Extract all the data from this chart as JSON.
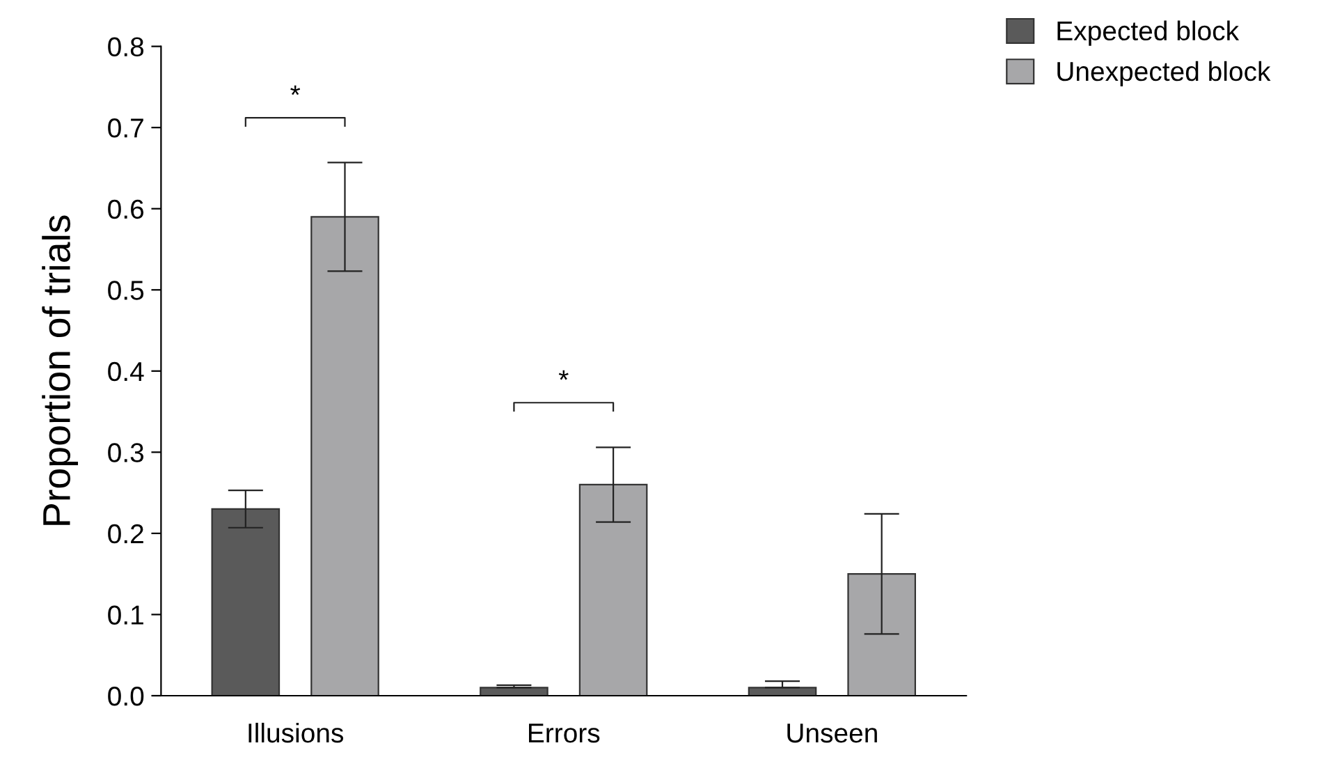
{
  "chart_data": {
    "type": "bar",
    "ylabel": "Proportion of trials",
    "categories": [
      "Illusions",
      "Errors",
      "Unseen"
    ],
    "series": [
      {
        "name": "Expected block",
        "color": "#5a5a5a",
        "values": [
          0.23,
          0.01,
          0.01
        ],
        "errors": [
          [
            0.207,
            0.253
          ],
          [
            0.01,
            0.013
          ],
          [
            0.01,
            0.018
          ]
        ]
      },
      {
        "name": "Unexpected block",
        "color": "#a7a7a9",
        "values": [
          0.59,
          0.26,
          0.15
        ],
        "errors": [
          [
            0.523,
            0.657
          ],
          [
            0.214,
            0.306
          ],
          [
            0.076,
            0.224
          ]
        ]
      }
    ],
    "ylim": [
      0,
      0.8
    ],
    "yticks": [
      {
        "value": 0,
        "label": "0.0"
      },
      {
        "value": 0.1,
        "label": "0.1"
      },
      {
        "value": 0.2,
        "label": "0.2"
      },
      {
        "value": 0.3,
        "label": "0.3"
      },
      {
        "value": 0.4,
        "label": "0.4"
      },
      {
        "value": 0.5,
        "label": "0.5"
      },
      {
        "value": 0.6,
        "label": "0.6"
      },
      {
        "value": 0.7,
        "label": "0.7"
      },
      {
        "value": 0.8,
        "label": "0.8"
      }
    ],
    "annotations": [
      "*",
      "*"
    ],
    "legend": "top right",
    "grid": false
  }
}
